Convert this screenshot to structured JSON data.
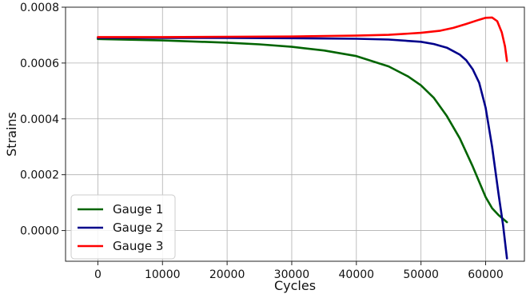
{
  "chart_data": {
    "type": "line",
    "title": "",
    "xlabel": "Cycles",
    "ylabel": "Strains",
    "xlim": [
      -5000,
      66000
    ],
    "ylim": [
      -0.00011,
      0.0008
    ],
    "x_ticks": [
      0,
      10000,
      20000,
      30000,
      40000,
      50000,
      60000
    ],
    "x_tick_labels": [
      "0",
      "10000",
      "20000",
      "30000",
      "40000",
      "50000",
      "60000"
    ],
    "y_ticks": [
      0.0,
      0.0002,
      0.0004,
      0.0006,
      0.0008
    ],
    "y_tick_labels": [
      "0.0000",
      "0.0002",
      "0.0004",
      "0.0006",
      "0.0008"
    ],
    "grid": true,
    "legend_position": "lower-left",
    "series": [
      {
        "name": "Gauge 1",
        "color": "#006400",
        "x": [
          0,
          10000,
          20000,
          25000,
          30000,
          35000,
          40000,
          45000,
          48000,
          50000,
          52000,
          54000,
          56000,
          58000,
          60000,
          61000,
          62000,
          63300
        ],
        "y": [
          0.000686,
          0.000681,
          0.000673,
          0.000667,
          0.000658,
          0.000645,
          0.000625,
          0.000588,
          0.000552,
          0.00052,
          0.000475,
          0.00041,
          0.00033,
          0.00023,
          0.00012,
          8e-05,
          5.5e-05,
          3e-05
        ]
      },
      {
        "name": "Gauge 2",
        "color": "#00008b",
        "x": [
          0,
          10000,
          20000,
          30000,
          40000,
          45000,
          50000,
          52000,
          54000,
          56000,
          57000,
          58000,
          59000,
          60000,
          61000,
          62000,
          62700,
          63300
        ],
        "y": [
          0.00069,
          0.00069,
          0.00069,
          0.000689,
          0.000687,
          0.000684,
          0.000676,
          0.000668,
          0.000655,
          0.00063,
          0.00061,
          0.000578,
          0.00053,
          0.00044,
          0.0003,
          0.00013,
          2e-05,
          -0.0001
        ]
      },
      {
        "name": "Gauge 3",
        "color": "#ff0000",
        "x": [
          0,
          10000,
          20000,
          30000,
          40000,
          45000,
          50000,
          53000,
          55000,
          57000,
          59000,
          60000,
          61000,
          61800,
          62500,
          63000,
          63300
        ],
        "y": [
          0.000693,
          0.000693,
          0.000694,
          0.000695,
          0.000698,
          0.000701,
          0.000708,
          0.000716,
          0.000726,
          0.00074,
          0.000755,
          0.000762,
          0.000763,
          0.00075,
          0.00071,
          0.00066,
          0.000607
        ]
      }
    ]
  }
}
